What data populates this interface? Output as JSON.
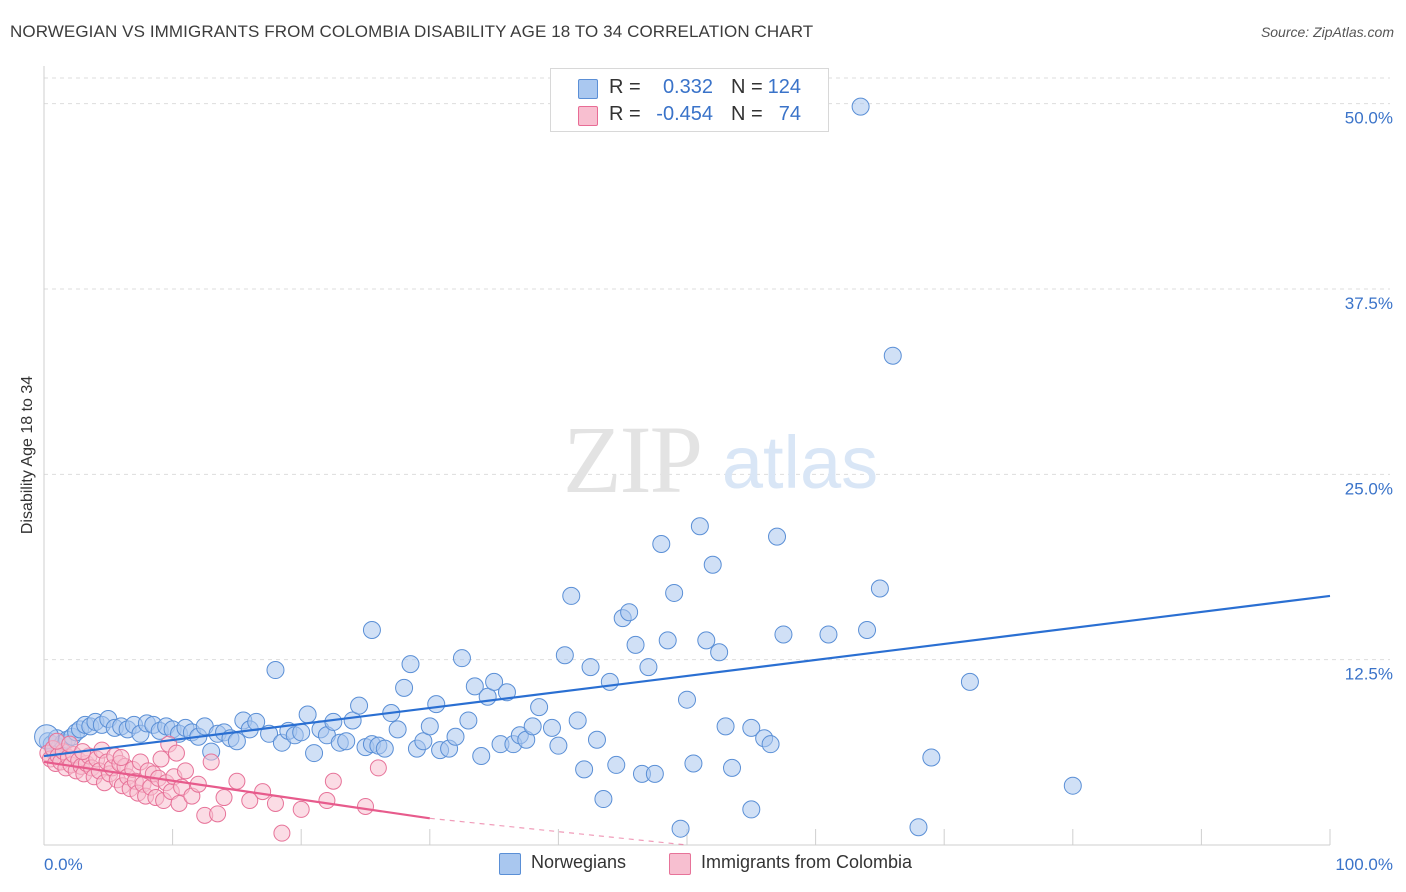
{
  "title": "NORWEGIAN VS IMMIGRANTS FROM COLOMBIA DISABILITY AGE 18 TO 34 CORRELATION CHART",
  "source": "Source: ZipAtlas.com",
  "watermark": {
    "zip": "ZIP",
    "atlas": "atlas"
  },
  "legend_stats": {
    "r_label": "R =",
    "n_label": "N =",
    "rows": [
      {
        "r": "0.332",
        "n": "124",
        "fill": "#aac8f0",
        "stroke": "#5b8fd6"
      },
      {
        "r": "-0.454",
        "n": "74",
        "fill": "#f8bfd0",
        "stroke": "#e86c95"
      }
    ]
  },
  "colors": {
    "blue_fill": "#a9c7ef",
    "blue_stroke": "#5a8fd6",
    "blue_line": "#2a6fd2",
    "pink_fill": "#f7bfd0",
    "pink_stroke": "#e77399",
    "pink_line": "#e75b8c",
    "tick_label": "#3a73c9",
    "grid": "#dddddd"
  },
  "chart_data": {
    "type": "scatter",
    "title": "NORWEGIAN VS IMMIGRANTS FROM COLOMBIA DISABILITY AGE 18 TO 34 CORRELATION CHART",
    "xlabel": "",
    "ylabel": "Disability Age 18 to 34",
    "xlim": [
      0,
      100
    ],
    "ylim": [
      0,
      52
    ],
    "x_tick_labels": [
      {
        "value": 0,
        "label": "0.0%"
      },
      {
        "value": 100,
        "label": "100.0%"
      }
    ],
    "y_ticks": [
      {
        "value": 12.5,
        "label": "12.5%"
      },
      {
        "value": 25.0,
        "label": "25.0%"
      },
      {
        "value": 37.5,
        "label": "37.5%"
      },
      {
        "value": 50.0,
        "label": "50.0%"
      }
    ],
    "x_gridlines": [
      0,
      10,
      20,
      30,
      40,
      50,
      60,
      70,
      80,
      90,
      100
    ],
    "grid": true,
    "legend_position": "top-center",
    "series": [
      {
        "name": "Norwegians",
        "r": 0.332,
        "n": 124,
        "trend": {
          "x0": 0,
          "y0": 6.0,
          "x1": 100,
          "y1": 16.8
        },
        "points": [
          [
            0.3,
            7.0
          ],
          [
            0.6,
            6.8
          ],
          [
            0.8,
            6.3
          ],
          [
            1.0,
            7.2
          ],
          [
            1.2,
            6.6
          ],
          [
            1.5,
            6.9
          ],
          [
            1.8,
            7.1
          ],
          [
            2.2,
            7.3
          ],
          [
            2.5,
            7.6
          ],
          [
            2.8,
            7.8
          ],
          [
            3.2,
            8.1
          ],
          [
            3.6,
            8.0
          ],
          [
            4.0,
            8.3
          ],
          [
            4.5,
            8.1
          ],
          [
            5.0,
            8.5
          ],
          [
            5.5,
            7.9
          ],
          [
            6.0,
            8.0
          ],
          [
            6.5,
            7.8
          ],
          [
            7.0,
            8.1
          ],
          [
            7.5,
            7.5
          ],
          [
            8.0,
            8.2
          ],
          [
            8.5,
            8.1
          ],
          [
            9.0,
            7.7
          ],
          [
            9.5,
            8.0
          ],
          [
            10.0,
            7.8
          ],
          [
            10.5,
            7.5
          ],
          [
            11.0,
            7.9
          ],
          [
            11.5,
            7.6
          ],
          [
            12.0,
            7.3
          ],
          [
            12.5,
            8.0
          ],
          [
            13.0,
            6.3
          ],
          [
            13.5,
            7.5
          ],
          [
            14.0,
            7.6
          ],
          [
            14.5,
            7.2
          ],
          [
            15.0,
            7.0
          ],
          [
            15.5,
            8.4
          ],
          [
            16.0,
            7.8
          ],
          [
            16.5,
            8.3
          ],
          [
            17.5,
            7.5
          ],
          [
            18.0,
            11.8
          ],
          [
            18.5,
            6.9
          ],
          [
            19.0,
            7.7
          ],
          [
            19.5,
            7.4
          ],
          [
            20.0,
            7.6
          ],
          [
            20.5,
            8.8
          ],
          [
            21.0,
            6.2
          ],
          [
            21.5,
            7.8
          ],
          [
            22.0,
            7.4
          ],
          [
            22.5,
            8.3
          ],
          [
            23.0,
            6.9
          ],
          [
            23.5,
            7.0
          ],
          [
            24.0,
            8.4
          ],
          [
            24.5,
            9.4
          ],
          [
            25.0,
            6.6
          ],
          [
            25.5,
            6.8
          ],
          [
            25.5,
            14.5
          ],
          [
            26.0,
            6.7
          ],
          [
            26.5,
            6.5
          ],
          [
            27.0,
            8.9
          ],
          [
            27.5,
            7.8
          ],
          [
            28.0,
            10.6
          ],
          [
            28.5,
            12.2
          ],
          [
            29.0,
            6.5
          ],
          [
            29.5,
            7.0
          ],
          [
            30.0,
            8.0
          ],
          [
            30.5,
            9.5
          ],
          [
            30.8,
            6.4
          ],
          [
            31.5,
            6.5
          ],
          [
            32.0,
            7.3
          ],
          [
            32.5,
            12.6
          ],
          [
            33.0,
            8.4
          ],
          [
            33.5,
            10.7
          ],
          [
            34.0,
            6.0
          ],
          [
            34.5,
            10.0
          ],
          [
            35.0,
            11.0
          ],
          [
            35.5,
            6.8
          ],
          [
            36.0,
            10.3
          ],
          [
            36.5,
            6.8
          ],
          [
            37.0,
            7.4
          ],
          [
            37.5,
            7.1
          ],
          [
            38.0,
            8.0
          ],
          [
            38.5,
            9.3
          ],
          [
            39.5,
            7.9
          ],
          [
            40.0,
            6.7
          ],
          [
            40.5,
            12.8
          ],
          [
            41.0,
            16.8
          ],
          [
            41.5,
            8.4
          ],
          [
            42.0,
            5.1
          ],
          [
            42.5,
            12.0
          ],
          [
            43.0,
            7.1
          ],
          [
            43.5,
            3.1
          ],
          [
            44.0,
            11.0
          ],
          [
            44.5,
            5.4
          ],
          [
            45.0,
            15.3
          ],
          [
            45.5,
            15.7
          ],
          [
            46.0,
            13.5
          ],
          [
            46.5,
            4.8
          ],
          [
            47.0,
            12.0
          ],
          [
            47.5,
            4.8
          ],
          [
            48.0,
            20.3
          ],
          [
            48.5,
            13.8
          ],
          [
            49.0,
            17.0
          ],
          [
            49.5,
            1.1
          ],
          [
            50.0,
            9.8
          ],
          [
            50.5,
            5.5
          ],
          [
            51.0,
            21.5
          ],
          [
            51.5,
            13.8
          ],
          [
            52.0,
            18.9
          ],
          [
            52.5,
            13.0
          ],
          [
            53.0,
            8.0
          ],
          [
            53.5,
            5.2
          ],
          [
            55.0,
            2.4
          ],
          [
            55.0,
            7.9
          ],
          [
            56.0,
            7.2
          ],
          [
            56.5,
            6.8
          ],
          [
            57.0,
            20.8
          ],
          [
            57.5,
            14.2
          ],
          [
            61.0,
            14.2
          ],
          [
            63.5,
            49.8
          ],
          [
            65.0,
            17.3
          ],
          [
            66.0,
            33.0
          ],
          [
            68.0,
            1.2
          ],
          [
            69.0,
            5.9
          ],
          [
            72.0,
            11.0
          ],
          [
            80.0,
            4.0
          ],
          [
            64.0,
            14.5
          ]
        ]
      },
      {
        "name": "Immigrants from Colombia",
        "r": -0.454,
        "n": 74,
        "trend": {
          "x0": 0,
          "y0": 5.6,
          "x1": 30,
          "y1": 1.8
        },
        "trend_dashed": {
          "x0": 30,
          "y0": 1.8,
          "x1": 50,
          "y1": -0.6
        },
        "points": [
          [
            0.3,
            6.2
          ],
          [
            0.5,
            5.8
          ],
          [
            0.7,
            6.5
          ],
          [
            0.9,
            5.5
          ],
          [
            1.1,
            6.0
          ],
          [
            1.3,
            5.6
          ],
          [
            1.5,
            6.3
          ],
          [
            1.7,
            5.2
          ],
          [
            1.9,
            5.9
          ],
          [
            2.1,
            5.4
          ],
          [
            2.3,
            6.1
          ],
          [
            2.5,
            5.0
          ],
          [
            2.7,
            5.7
          ],
          [
            2.9,
            5.3
          ],
          [
            3.1,
            4.8
          ],
          [
            3.3,
            5.5
          ],
          [
            3.5,
            6.0
          ],
          [
            3.7,
            5.2
          ],
          [
            3.9,
            4.6
          ],
          [
            4.1,
            5.8
          ],
          [
            4.3,
            5.0
          ],
          [
            4.5,
            6.4
          ],
          [
            4.7,
            4.2
          ],
          [
            4.9,
            5.6
          ],
          [
            5.1,
            4.8
          ],
          [
            5.3,
            5.2
          ],
          [
            5.5,
            6.0
          ],
          [
            5.7,
            4.4
          ],
          [
            5.9,
            5.5
          ],
          [
            6.1,
            4.0
          ],
          [
            6.3,
            5.3
          ],
          [
            6.5,
            4.6
          ],
          [
            6.7,
            3.8
          ],
          [
            6.9,
            5.1
          ],
          [
            7.1,
            4.3
          ],
          [
            7.3,
            3.5
          ],
          [
            7.5,
            5.6
          ],
          [
            7.7,
            4.1
          ],
          [
            7.9,
            3.3
          ],
          [
            8.1,
            5.0
          ],
          [
            8.3,
            3.9
          ],
          [
            8.5,
            4.8
          ],
          [
            8.7,
            3.2
          ],
          [
            8.9,
            4.5
          ],
          [
            9.1,
            5.8
          ],
          [
            9.3,
            3.0
          ],
          [
            9.5,
            4.2
          ],
          [
            9.7,
            6.8
          ],
          [
            9.9,
            3.6
          ],
          [
            10.1,
            4.6
          ],
          [
            10.3,
            6.2
          ],
          [
            10.5,
            2.8
          ],
          [
            10.7,
            3.9
          ],
          [
            11.0,
            5.0
          ],
          [
            11.5,
            3.3
          ],
          [
            12.0,
            4.1
          ],
          [
            12.5,
            2.0
          ],
          [
            13.0,
            5.6
          ],
          [
            13.5,
            2.1
          ],
          [
            14.0,
            3.2
          ],
          [
            15.0,
            4.3
          ],
          [
            16.0,
            3.0
          ],
          [
            17.0,
            3.6
          ],
          [
            18.0,
            2.8
          ],
          [
            18.5,
            0.8
          ],
          [
            20.0,
            2.4
          ],
          [
            22.0,
            3.0
          ],
          [
            25.0,
            2.6
          ],
          [
            22.5,
            4.3
          ],
          [
            26.0,
            5.2
          ],
          [
            1.0,
            7.0
          ],
          [
            2.0,
            6.8
          ],
          [
            6.0,
            5.9
          ],
          [
            3.0,
            6.3
          ]
        ]
      }
    ]
  }
}
